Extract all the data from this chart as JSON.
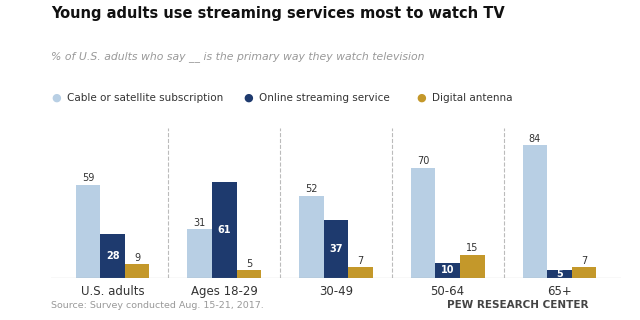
{
  "title": "Young adults use streaming services most to watch TV",
  "subtitle": "% of U.S. adults who say __ is the primary way they watch television",
  "categories": [
    "U.S. adults",
    "Ages 18-29",
    "30-49",
    "50-64",
    "65+"
  ],
  "series": {
    "Cable or satellite subscription": [
      59,
      31,
      52,
      70,
      84
    ],
    "Online streaming service": [
      28,
      61,
      37,
      10,
      5
    ],
    "Digital antenna": [
      9,
      5,
      7,
      15,
      7
    ]
  },
  "colors": {
    "Cable or satellite subscription": "#b8cfe4",
    "Online streaming service": "#1e3a6e",
    "Digital antenna": "#c4982a"
  },
  "source": "Source: Survey conducted Aug. 15-21, 2017.",
  "credit": "PEW RESEARCH CENTER",
  "ylim": [
    0,
    95
  ],
  "bar_width": 0.22
}
